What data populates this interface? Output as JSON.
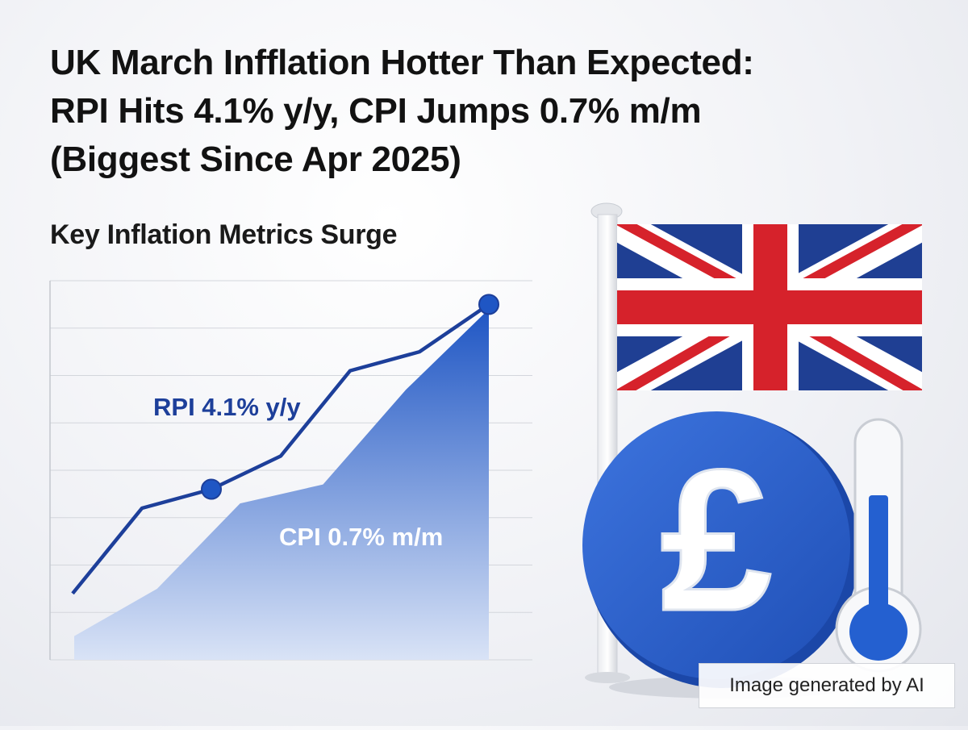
{
  "headline": {
    "line1": "UK March Infflation Hotter Than Expected:",
    "line2": "RPI Hits 4.1% y/y, CPI Jumps 0.7% m/m",
    "line3": "(Biggest Since Apr 2025)"
  },
  "subtitle": "Key Inflation Metrics Surge",
  "badge": "Image generated by AI",
  "colors": {
    "line": "#1d3f9a",
    "area_top": "#1f56c4",
    "area_bottom": "#d9e3f6",
    "coin": "#2f64d1",
    "flag_blue": "#1f3f93",
    "flag_red": "#d6222b",
    "thermo_fill": "#2460d0"
  },
  "icons": [
    "uk-flag-icon",
    "pound-coin-icon",
    "thermometer-icon"
  ],
  "chart_data": {
    "type": "area",
    "title": "",
    "xlabel": "",
    "ylabel": "",
    "grid": true,
    "ylim": [
      0,
      8
    ],
    "series": [
      {
        "name": "RPI 4.1% y/y",
        "type": "line",
        "values": [
          1.4,
          3.2,
          3.6,
          4.3,
          6.1,
          6.5,
          7.5
        ],
        "markers": [
          2,
          6
        ]
      },
      {
        "name": "CPI 0.7% m/m",
        "type": "area",
        "values": [
          0.5,
          1.5,
          3.3,
          3.7,
          5.7,
          7.4
        ]
      }
    ]
  }
}
